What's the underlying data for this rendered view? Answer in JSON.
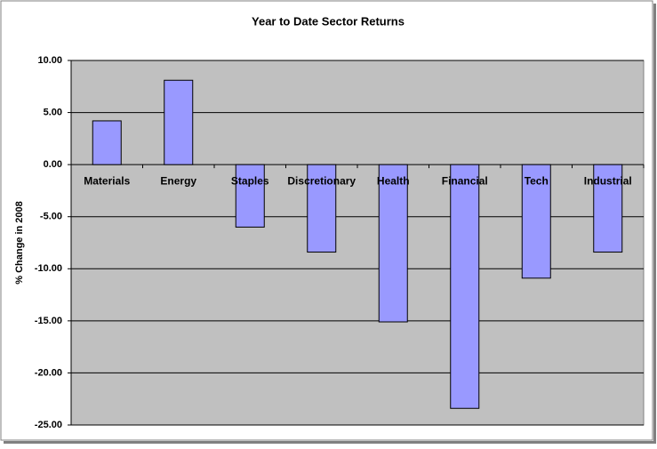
{
  "chart_data": {
    "type": "bar",
    "title": "Year to Date Sector Returns",
    "y_label": "% Change in 2008",
    "categories": [
      "Materials",
      "Energy",
      "Staples",
      "Discretionary",
      "Health",
      "Financial",
      "Tech",
      "Industrial"
    ],
    "values": [
      4.2,
      8.1,
      -6.0,
      -8.4,
      -15.1,
      -23.4,
      -10.9,
      -8.4
    ],
    "color": "#9999ff",
    "ylim": [
      -25,
      10
    ],
    "yticks": [
      {
        "value": -25,
        "label": "-25.00"
      },
      {
        "value": -20,
        "label": "-20.00"
      },
      {
        "value": -15,
        "label": "-15.00"
      },
      {
        "value": -10,
        "label": "-10.00"
      },
      {
        "value": -5,
        "label": "-5.00"
      },
      {
        "value": 0,
        "label": "0.00"
      },
      {
        "value": 5,
        "label": "5.00"
      },
      {
        "value": 10,
        "label": "10.00"
      }
    ],
    "grid": true
  }
}
